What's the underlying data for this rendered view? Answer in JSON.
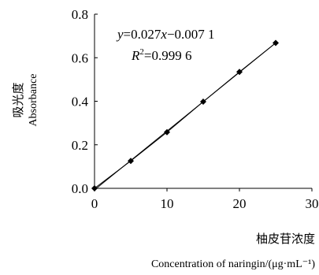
{
  "chart_data": {
    "type": "scatter",
    "xlabel_cn": "柚皮苷浓度",
    "xlabel_en": "Concentration of naringin/(μg·mL⁻¹)",
    "ylabel_cn": "吸光度",
    "ylabel_en": "Absorbance",
    "xlim": [
      0,
      30
    ],
    "ylim": [
      0,
      0.8
    ],
    "x_ticks": [
      "0",
      "10",
      "20",
      "30"
    ],
    "x_tick_values": [
      0,
      10,
      20,
      30
    ],
    "y_ticks": [
      "0.0",
      "0.2",
      "0.4",
      "0.6",
      "0.8"
    ],
    "y_tick_values": [
      0,
      0.2,
      0.4,
      0.6,
      0.8
    ],
    "grid": false,
    "legend": "none",
    "series": [
      {
        "x": [
          0,
          5,
          10,
          15,
          20,
          25
        ],
        "y": [
          0.0,
          0.126,
          0.258,
          0.398,
          0.535,
          0.668
        ],
        "marker": "diamond",
        "color": "#000000"
      }
    ],
    "fit_line": {
      "slope": 0.027,
      "intercept": -0.0071,
      "x_range": [
        0,
        25
      ],
      "color": "#000000"
    },
    "annotations": {
      "equation": {
        "y": "y",
        "rhs": "=0.027",
        "x": "x",
        "tail": "−0.007 1"
      },
      "r_squared": {
        "r": "R",
        "sup": "2",
        "value": "=0.999 6"
      }
    }
  }
}
